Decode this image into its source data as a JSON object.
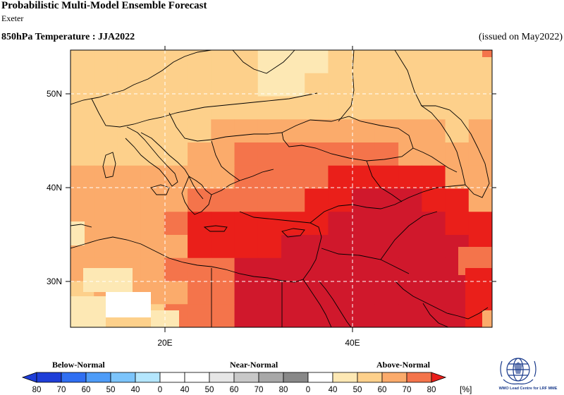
{
  "header": {
    "title": "Probabilistic Multi-Model Ensemble Forecast",
    "subtitle": "Exeter",
    "variable": "850hPa Temperature : JJA2022",
    "issued": "(issued on May2022)"
  },
  "map": {
    "lon_range": [
      10,
      55
    ],
    "lat_range": [
      25,
      55
    ],
    "lat_labels": [
      "50N",
      "40N",
      "30N"
    ],
    "lat_values": [
      50,
      40,
      30
    ],
    "lon_labels": [
      "20E",
      "40E"
    ],
    "lon_values": [
      20,
      40
    ],
    "gridlines": "dashed"
  },
  "colors": {
    "above_40": "#fde8b4",
    "above_50": "#fdd08b",
    "above_60": "#fbab6b",
    "above_70": "#f4744b",
    "above_80": "#ea1f1a",
    "above_max": "#d0182c",
    "white": "#ffffff",
    "land_line": "#000000",
    "grid": "#ffffff"
  },
  "legend": {
    "categories": [
      "Below-Normal",
      "Near-Normal",
      "Above-Normal"
    ],
    "ticks": [
      "80",
      "70",
      "60",
      "50",
      "40",
      "0",
      "40",
      "50",
      "60",
      "70",
      "80",
      "0",
      "40",
      "50",
      "60",
      "70",
      "80"
    ],
    "unit": "[%]",
    "below_colors": [
      "#1e3ed8",
      "#2f6ff2",
      "#4e9cf8",
      "#7cc4fb",
      "#b4e6fd"
    ],
    "near_colors": [
      "#e6e6e6",
      "#c8c8c8",
      "#a8a8a8",
      "#888888",
      "#5a5a5a"
    ],
    "above_colors": [
      "#fde8b4",
      "#fdd08b",
      "#fbab6b",
      "#f4744b",
      "#ea1f1a"
    ]
  },
  "logo": {
    "text": "WMO Lead Centre for LRF MME",
    "icon": "wmo-emblem-icon"
  }
}
